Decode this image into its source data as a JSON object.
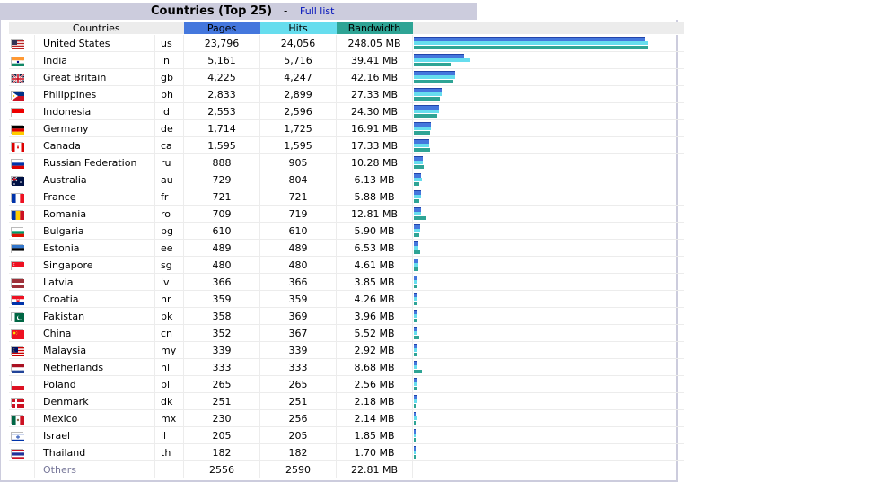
{
  "header": {
    "title": "Countries (Top 25)",
    "separator": "-",
    "full_list_link": "Full list"
  },
  "columns": {
    "countries": "Countries",
    "pages": "Pages",
    "hits": "Hits",
    "bandwidth": "Bandwidth"
  },
  "colors": {
    "pages": "#4477DD",
    "hits": "#66DDEE",
    "bandwidth": "#2EA495",
    "header_bg": "#CCCCDD"
  },
  "rows": [
    {
      "flag": "us",
      "country": "United States",
      "code": "us",
      "pages": "23,796",
      "hits": "24,056",
      "bandwidth": "248.05 MB"
    },
    {
      "flag": "in",
      "country": "India",
      "code": "in",
      "pages": "5,161",
      "hits": "5,716",
      "bandwidth": "39.41 MB"
    },
    {
      "flag": "gb",
      "country": "Great Britain",
      "code": "gb",
      "pages": "4,225",
      "hits": "4,247",
      "bandwidth": "42.16 MB"
    },
    {
      "flag": "ph",
      "country": "Philippines",
      "code": "ph",
      "pages": "2,833",
      "hits": "2,899",
      "bandwidth": "27.33 MB"
    },
    {
      "flag": "id",
      "country": "Indonesia",
      "code": "id",
      "pages": "2,553",
      "hits": "2,596",
      "bandwidth": "24.30 MB"
    },
    {
      "flag": "de",
      "country": "Germany",
      "code": "de",
      "pages": "1,714",
      "hits": "1,725",
      "bandwidth": "16.91 MB"
    },
    {
      "flag": "ca",
      "country": "Canada",
      "code": "ca",
      "pages": "1,595",
      "hits": "1,595",
      "bandwidth": "17.33 MB"
    },
    {
      "flag": "ru",
      "country": "Russian Federation",
      "code": "ru",
      "pages": "888",
      "hits": "905",
      "bandwidth": "10.28 MB"
    },
    {
      "flag": "au",
      "country": "Australia",
      "code": "au",
      "pages": "729",
      "hits": "804",
      "bandwidth": "6.13 MB"
    },
    {
      "flag": "fr",
      "country": "France",
      "code": "fr",
      "pages": "721",
      "hits": "721",
      "bandwidth": "5.88 MB"
    },
    {
      "flag": "ro",
      "country": "Romania",
      "code": "ro",
      "pages": "709",
      "hits": "719",
      "bandwidth": "12.81 MB"
    },
    {
      "flag": "bg",
      "country": "Bulgaria",
      "code": "bg",
      "pages": "610",
      "hits": "610",
      "bandwidth": "5.90 MB"
    },
    {
      "flag": "ee",
      "country": "Estonia",
      "code": "ee",
      "pages": "489",
      "hits": "489",
      "bandwidth": "6.53 MB"
    },
    {
      "flag": "sg",
      "country": "Singapore",
      "code": "sg",
      "pages": "480",
      "hits": "480",
      "bandwidth": "4.61 MB"
    },
    {
      "flag": "lv",
      "country": "Latvia",
      "code": "lv",
      "pages": "366",
      "hits": "366",
      "bandwidth": "3.85 MB"
    },
    {
      "flag": "hr",
      "country": "Croatia",
      "code": "hr",
      "pages": "359",
      "hits": "359",
      "bandwidth": "4.26 MB"
    },
    {
      "flag": "pk",
      "country": "Pakistan",
      "code": "pk",
      "pages": "358",
      "hits": "369",
      "bandwidth": "3.96 MB"
    },
    {
      "flag": "cn",
      "country": "China",
      "code": "cn",
      "pages": "352",
      "hits": "367",
      "bandwidth": "5.52 MB"
    },
    {
      "flag": "my",
      "country": "Malaysia",
      "code": "my",
      "pages": "339",
      "hits": "339",
      "bandwidth": "2.92 MB"
    },
    {
      "flag": "nl",
      "country": "Netherlands",
      "code": "nl",
      "pages": "333",
      "hits": "333",
      "bandwidth": "8.68 MB"
    },
    {
      "flag": "pl",
      "country": "Poland",
      "code": "pl",
      "pages": "265",
      "hits": "265",
      "bandwidth": "2.56 MB"
    },
    {
      "flag": "dk",
      "country": "Denmark",
      "code": "dk",
      "pages": "251",
      "hits": "251",
      "bandwidth": "2.18 MB"
    },
    {
      "flag": "mx",
      "country": "Mexico",
      "code": "mx",
      "pages": "230",
      "hits": "256",
      "bandwidth": "2.14 MB"
    },
    {
      "flag": "il",
      "country": "Israel",
      "code": "il",
      "pages": "205",
      "hits": "205",
      "bandwidth": "1.85 MB"
    },
    {
      "flag": "th",
      "country": "Thailand",
      "code": "th",
      "pages": "182",
      "hits": "182",
      "bandwidth": "1.70 MB"
    }
  ],
  "others": {
    "country": "Others",
    "pages": "2556",
    "hits": "2590",
    "bandwidth": "22.81 MB"
  }
}
